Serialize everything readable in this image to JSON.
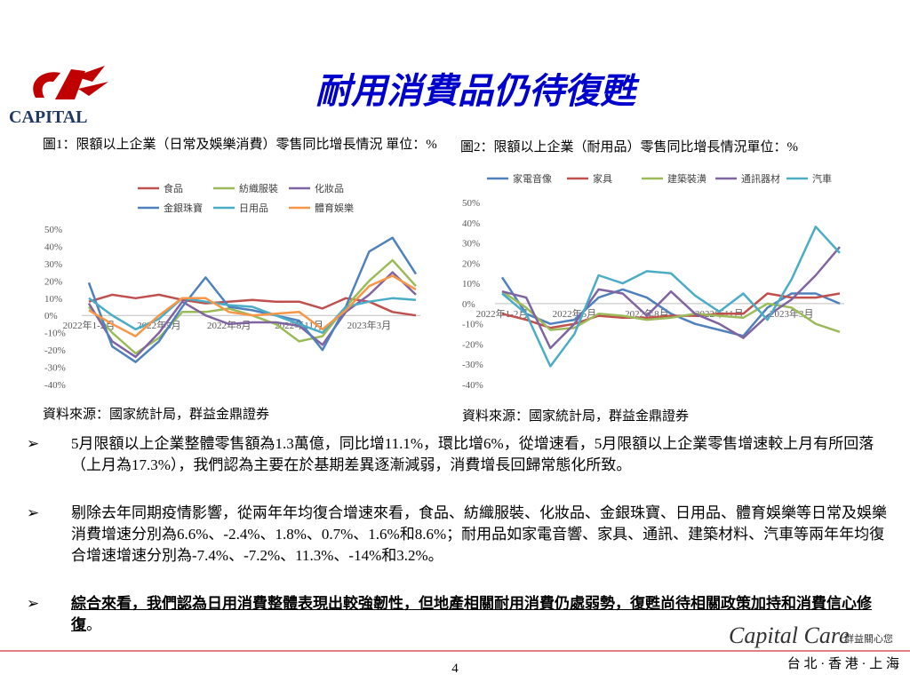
{
  "header": {
    "logo": "CAPITAL",
    "title": "耐用消費品仍待復甦"
  },
  "chart_data": [
    {
      "type": "line",
      "title": "圖1：限額以上企業（日常及娛樂消費）零售同比增長情況 單位：%",
      "source": "資料來源：國家統計局，群益金鼎證券",
      "categories": [
        "2022年1-2月",
        null,
        null,
        "2022年5月",
        null,
        null,
        "2022年8月",
        null,
        null,
        "2022年11月",
        null,
        null,
        "2023年3月",
        null,
        null
      ],
      "ylim": [
        -40,
        50
      ],
      "yticks": [
        {
          "value": 50,
          "label": "50%"
        },
        {
          "value": 40,
          "label": "40%"
        },
        {
          "value": 30,
          "label": "30%"
        },
        {
          "value": 20,
          "label": "20%"
        },
        {
          "value": 10,
          "label": "10%"
        },
        {
          "value": 0,
          "label": "0%"
        },
        {
          "value": -10,
          "label": "-10%"
        },
        {
          "value": -20,
          "label": "-20%"
        },
        {
          "value": -30,
          "label": "-30%"
        },
        {
          "value": -40,
          "label": "-40%"
        }
      ],
      "grid": false,
      "series": [
        {
          "name": "食品",
          "color": "#c0504d",
          "values": [
            8,
            12,
            10,
            12,
            9,
            7,
            8,
            9,
            8,
            8,
            4,
            10,
            8,
            2,
            0
          ]
        },
        {
          "name": "紡織服裝",
          "color": "#9bbb59",
          "values": [
            5,
            -10,
            -22,
            -13,
            2,
            2,
            4,
            0,
            -5,
            -15,
            -12,
            5,
            20,
            32,
            17
          ]
        },
        {
          "name": "化妝品",
          "color": "#8064a2",
          "values": [
            7,
            -15,
            -24,
            -10,
            8,
            0,
            -5,
            -4,
            -4,
            -6,
            -17,
            2,
            12,
            25,
            12
          ]
        },
        {
          "name": "金銀珠寶",
          "color": "#4f81bd",
          "values": [
            19,
            -18,
            -27,
            -15,
            5,
            22,
            5,
            3,
            0,
            -3,
            -20,
            5,
            37,
            45,
            24
          ]
        },
        {
          "name": "日用品",
          "color": "#4bacc6",
          "values": [
            10,
            0,
            -8,
            -2,
            10,
            8,
            6,
            5,
            0,
            -5,
            -10,
            5,
            8,
            10,
            9
          ]
        },
        {
          "name": "體育娛樂",
          "color": "#f79646",
          "values": [
            3,
            -5,
            -12,
            0,
            10,
            10,
            2,
            0,
            1,
            2,
            -8,
            3,
            17,
            23,
            15
          ]
        }
      ]
    },
    {
      "type": "line",
      "title": "圖2：限額以上企業（耐用品）零售同比增長情況單位：%",
      "source": "資料來源：國家統計局，群益金鼎證券",
      "categories": [
        "2022年1-2月",
        null,
        null,
        "2022年5月",
        null,
        null,
        "2022年8月",
        null,
        null,
        "2022年11月",
        null,
        null,
        "2023年3月",
        null,
        null
      ],
      "ylim": [
        -40,
        50
      ],
      "yticks": [
        {
          "value": 50,
          "label": "50%"
        },
        {
          "value": 40,
          "label": "40%"
        },
        {
          "value": 30,
          "label": "30%"
        },
        {
          "value": 20,
          "label": "20%"
        },
        {
          "value": 10,
          "label": "10%"
        },
        {
          "value": 0,
          "label": "0%"
        },
        {
          "value": -10,
          "label": "-10%"
        },
        {
          "value": -20,
          "label": "-20%"
        },
        {
          "value": -30,
          "label": "-30%"
        },
        {
          "value": -40,
          "label": "-40%"
        }
      ],
      "grid": false,
      "series": [
        {
          "name": "家電音像",
          "color": "#4f81bd",
          "values": [
            13,
            -5,
            -10,
            -8,
            3,
            7,
            3,
            -5,
            -10,
            -13,
            -16,
            -2,
            5,
            5,
            0
          ]
        },
        {
          "name": "家具",
          "color": "#c0504d",
          "values": [
            -5,
            -8,
            -12,
            -10,
            -6,
            -7,
            -7,
            -6,
            -6,
            -5,
            -5,
            5,
            3,
            3,
            5
          ]
        },
        {
          "name": "建築裝潢",
          "color": "#9bbb59",
          "values": [
            6,
            -2,
            -13,
            -12,
            -5,
            -6,
            -8,
            -7,
            -5,
            -6,
            -7,
            0,
            -2,
            -10,
            -14
          ]
        },
        {
          "name": "通訊器材",
          "color": "#8064a2",
          "values": [
            6,
            3,
            -22,
            -10,
            7,
            5,
            -6,
            6,
            -5,
            -10,
            -17,
            -6,
            2,
            14,
            28
          ]
        },
        {
          "name": "汽車",
          "color": "#4bacc6",
          "values": [
            5,
            -5,
            -31,
            -15,
            14,
            10,
            16,
            15,
            4,
            -4,
            5,
            -8,
            12,
            38,
            25
          ]
        }
      ]
    }
  ],
  "bullets": [
    {
      "text": "5月限額以上企業整體零售額為1.3萬億，同比增11.1%，環比增6%，從增速看，5月限額以上企業零售增速較上月有所回落（上月為17.3%），我們認為主要在於基期差異逐漸減弱，消費增長回歸常態化所致。"
    },
    {
      "text": "剔除去年同期疫情影響，從兩年年均復合增速來看，食品、紡織服裝、化妝品、金銀珠寶、日用品、體育娛樂等日常及娛樂消費增速分別為6.6%、-2.4%、1.8%、0.7%、1.6%和8.6%；耐用品如家電音響、家具、通訊、建築材料、汽車等兩年年均復合增速增速分別為-7.4%、-7.2%、11.3%、-14%和3.2%。"
    },
    {
      "emph": "綜合來看，我們認為日用消費整體表現出較強韌性，但地產相關耐用消費仍處弱勢，復甦尚待相關政策加持和消費信心修復",
      "tail": "。"
    }
  ],
  "footer": {
    "brand": "Capital Care",
    "slogan": "群益關心您",
    "offices": "台 北 · 香 港 · 上 海",
    "page": "4"
  }
}
